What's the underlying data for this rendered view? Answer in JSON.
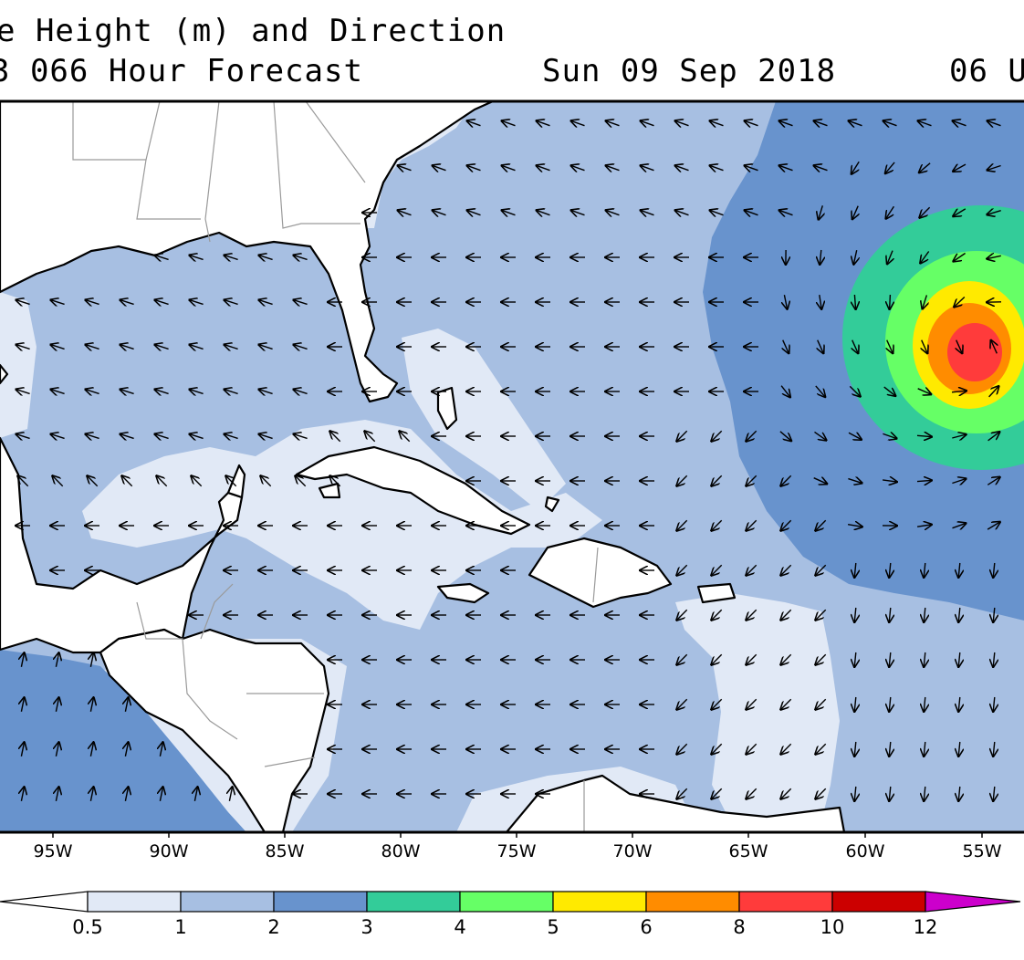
{
  "title": {
    "line1": "e Height (m) and Direction",
    "line2_left": "3 066 Hour Forecast",
    "line2_date": "Sun 09 Sep 2018",
    "line2_time": "06 U"
  },
  "longitude_labels": [
    "95W",
    "90W",
    "85W",
    "80W",
    "75W",
    "70W",
    "65W",
    "60W",
    "55W"
  ],
  "colorbar": {
    "labels": [
      "0.5",
      "1",
      "2",
      "3",
      "4",
      "5",
      "6",
      "8",
      "10",
      "12"
    ],
    "colors": [
      "#ffffff",
      "#e1e9f6",
      "#a7bfe2",
      "#6893cd",
      "#33cc99",
      "#66ff66",
      "#ffea00",
      "#ff8c00",
      "#ff3b3b",
      "#cc0000",
      "#cc00cc"
    ]
  },
  "colors": {
    "land": "#ffffff",
    "coastline": "#000000",
    "borders": "#9a9a9a",
    "arrows": "#000000"
  }
}
